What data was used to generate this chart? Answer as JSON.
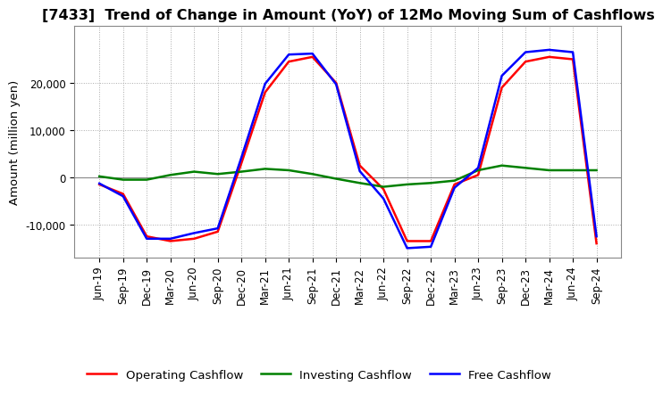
{
  "title": "[7433]  Trend of Change in Amount (YoY) of 12Mo Moving Sum of Cashflows",
  "ylabel": "Amount (million yen)",
  "title_fontsize": 11.5,
  "label_fontsize": 9.5,
  "tick_fontsize": 8.5,
  "background_color": "#ffffff",
  "grid_color": "#aaaaaa",
  "x_labels": [
    "Jun-19",
    "Sep-19",
    "Dec-19",
    "Mar-20",
    "Jun-20",
    "Sep-20",
    "Dec-20",
    "Mar-21",
    "Jun-21",
    "Sep-21",
    "Dec-21",
    "Mar-22",
    "Jun-22",
    "Sep-22",
    "Dec-22",
    "Mar-23",
    "Jun-23",
    "Sep-23",
    "Dec-23",
    "Mar-24",
    "Jun-24",
    "Sep-24"
  ],
  "operating_cashflow": [
    -1500,
    -3500,
    -12500,
    -13500,
    -13000,
    -11500,
    3000,
    18000,
    24500,
    25500,
    20000,
    2500,
    -2500,
    -13500,
    -13500,
    -1500,
    500,
    19000,
    24500,
    25500,
    25000,
    -14000
  ],
  "investing_cashflow": [
    200,
    -500,
    -500,
    500,
    1200,
    700,
    1200,
    1800,
    1500,
    700,
    -300,
    -1200,
    -2000,
    -1500,
    -1200,
    -700,
    1500,
    2500,
    2000,
    1500,
    1500,
    1500
  ],
  "free_cashflow": [
    -1300,
    -4000,
    -13000,
    -13000,
    -11800,
    -10800,
    4200,
    19800,
    26000,
    26200,
    19700,
    1300,
    -4500,
    -15000,
    -14700,
    -2200,
    2000,
    21500,
    26500,
    27000,
    26500,
    -12500
  ],
  "operating_color": "#ff0000",
  "investing_color": "#008000",
  "free_color": "#0000ff",
  "ylim": [
    -17000,
    32000
  ],
  "yticks": [
    -10000,
    0,
    10000,
    20000
  ]
}
